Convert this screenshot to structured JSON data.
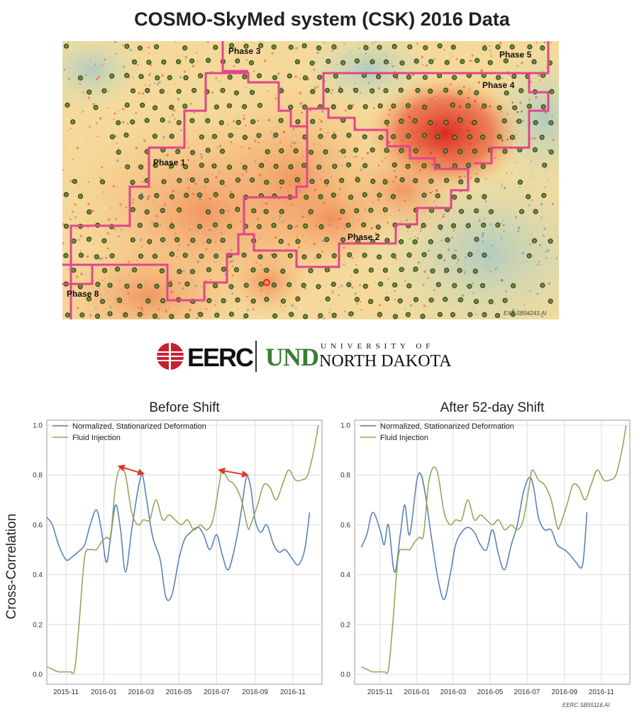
{
  "title": "COSMO-SkyMed system (CSK) 2016 Data",
  "map": {
    "phases": [
      "Phase 1",
      "Phase 2",
      "Phase 3",
      "Phase 4",
      "Phase 5",
      "Phase 8"
    ],
    "credit": "EXT SB54243.AI",
    "colors": {
      "boundary": "#e0468c",
      "well_fill": "#6f8a3a"
    }
  },
  "logos": {
    "eerc": "EERC",
    "und_mark": "UND",
    "university_of": "UNIVERSITY OF",
    "north_dakota": "NORTH DAKOTA"
  },
  "figure_credit": "EERC SB55116.AI",
  "chart_data": [
    {
      "type": "line",
      "title": "Before Shift",
      "ylabel": "Cross-Correlation",
      "xlabel": "",
      "ylim": [
        -0.04,
        1.02
      ],
      "xlim": [
        "2015-10-01",
        "2016-12-18"
      ],
      "yticks": [
        "0.0",
        "0.2",
        "0.4",
        "0.6",
        "0.8",
        "1.0"
      ],
      "xticks": [
        "2015-11",
        "2016-01",
        "2016-03",
        "2016-05",
        "2016-07",
        "2016-09",
        "2016-11"
      ],
      "grid": true,
      "legend": "top-left",
      "annotations": [
        "double arrow between peaks near 2016-02",
        "double arrow between peaks near 2016-08"
      ],
      "series": [
        {
          "name": "Normalized, Stationarized Deformation",
          "color": "#5b83b5",
          "x": [
            "2015-10-01",
            "2015-10-10",
            "2015-10-20",
            "2015-11-01",
            "2015-11-10",
            "2015-11-20",
            "2015-12-01",
            "2015-12-10",
            "2015-12-20",
            "2015-12-28",
            "2016-01-05",
            "2016-01-12",
            "2016-01-20",
            "2016-01-28",
            "2016-02-05",
            "2016-02-15",
            "2016-02-25",
            "2016-03-03",
            "2016-03-10",
            "2016-03-20",
            "2016-04-01",
            "2016-04-10",
            "2016-04-20",
            "2016-05-01",
            "2016-05-10",
            "2016-05-20",
            "2016-06-01",
            "2016-06-10",
            "2016-06-20",
            "2016-07-01",
            "2016-07-10",
            "2016-07-20",
            "2016-08-01",
            "2016-08-10",
            "2016-08-18",
            "2016-08-25",
            "2016-09-01",
            "2016-09-10",
            "2016-09-20",
            "2016-10-01",
            "2016-10-10",
            "2016-10-20",
            "2016-11-01",
            "2016-11-10",
            "2016-11-20",
            "2016-11-28"
          ],
          "values": [
            0.63,
            0.6,
            0.52,
            0.46,
            0.47,
            0.49,
            0.52,
            0.6,
            0.66,
            0.58,
            0.45,
            0.55,
            0.68,
            0.58,
            0.41,
            0.58,
            0.74,
            0.8,
            0.7,
            0.55,
            0.46,
            0.31,
            0.32,
            0.46,
            0.54,
            0.57,
            0.59,
            0.56,
            0.5,
            0.56,
            0.48,
            0.42,
            0.53,
            0.66,
            0.79,
            0.75,
            0.62,
            0.57,
            0.6,
            0.52,
            0.49,
            0.5,
            0.46,
            0.44,
            0.5,
            0.65
          ]
        },
        {
          "name": "Fluid Injection",
          "color": "#9aa55a",
          "x": [
            "2015-10-01",
            "2015-10-10",
            "2015-10-20",
            "2015-11-01",
            "2015-11-08",
            "2015-11-15",
            "2015-11-22",
            "2015-12-01",
            "2015-12-10",
            "2015-12-20",
            "2015-12-28",
            "2016-01-05",
            "2016-01-12",
            "2016-01-20",
            "2016-01-28",
            "2016-02-05",
            "2016-02-15",
            "2016-02-25",
            "2016-03-05",
            "2016-03-15",
            "2016-03-25",
            "2016-04-05",
            "2016-04-15",
            "2016-04-25",
            "2016-05-05",
            "2016-05-15",
            "2016-05-25",
            "2016-06-05",
            "2016-06-15",
            "2016-06-25",
            "2016-07-05",
            "2016-07-10",
            "2016-07-20",
            "2016-07-30",
            "2016-08-10",
            "2016-08-20",
            "2016-08-25",
            "2016-09-05",
            "2016-09-15",
            "2016-09-25",
            "2016-10-05",
            "2016-10-15",
            "2016-10-25",
            "2016-11-05",
            "2016-11-15",
            "2016-11-25",
            "2016-12-05",
            "2016-12-12"
          ],
          "values": [
            0.03,
            0.02,
            0.01,
            0.01,
            0.01,
            0.02,
            0.2,
            0.47,
            0.5,
            0.5,
            0.53,
            0.55,
            0.56,
            0.76,
            0.83,
            0.8,
            0.65,
            0.6,
            0.62,
            0.62,
            0.7,
            0.62,
            0.64,
            0.62,
            0.6,
            0.62,
            0.58,
            0.6,
            0.58,
            0.62,
            0.76,
            0.82,
            0.78,
            0.76,
            0.7,
            0.59,
            0.6,
            0.68,
            0.76,
            0.75,
            0.7,
            0.76,
            0.82,
            0.78,
            0.78,
            0.8,
            0.9,
            1.0
          ]
        }
      ]
    },
    {
      "type": "line",
      "title": "After 52-day Shift",
      "xlabel": "",
      "ylim": [
        -0.04,
        1.02
      ],
      "xlim": [
        "2015-09-20",
        "2016-12-18"
      ],
      "yticks": [
        "0.0",
        "0.2",
        "0.4",
        "0.6",
        "0.8",
        "1.0"
      ],
      "xticks": [
        "2015-11",
        "2016-01",
        "2016-03",
        "2016-05",
        "2016-07",
        "2016-09",
        "2016-11"
      ],
      "grid": true,
      "legend": "top-left",
      "series": [
        {
          "name": "Normalized, Stationarized Deformation",
          "color": "#5b83b5",
          "x": [
            "2015-10-01",
            "2015-10-10",
            "2015-10-20",
            "2015-11-01",
            "2015-11-08",
            "2015-11-15",
            "2015-11-25",
            "2015-12-05",
            "2015-12-12",
            "2015-12-20",
            "2016-01-01",
            "2016-01-08",
            "2016-01-15",
            "2016-01-25",
            "2016-02-05",
            "2016-02-15",
            "2016-02-25",
            "2016-03-05",
            "2016-03-15",
            "2016-03-25",
            "2016-04-05",
            "2016-04-15",
            "2016-04-25",
            "2016-05-05",
            "2016-05-15",
            "2016-05-25",
            "2016-06-05",
            "2016-06-15",
            "2016-06-25",
            "2016-07-05",
            "2016-07-12",
            "2016-07-20",
            "2016-07-30",
            "2016-08-10",
            "2016-08-20",
            "2016-09-01",
            "2016-09-10",
            "2016-09-20",
            "2016-10-01",
            "2016-10-08"
          ],
          "values": [
            0.51,
            0.56,
            0.65,
            0.58,
            0.52,
            0.6,
            0.41,
            0.57,
            0.68,
            0.56,
            0.78,
            0.8,
            0.72,
            0.55,
            0.38,
            0.3,
            0.4,
            0.52,
            0.57,
            0.59,
            0.57,
            0.52,
            0.5,
            0.58,
            0.48,
            0.42,
            0.52,
            0.6,
            0.73,
            0.79,
            0.75,
            0.63,
            0.58,
            0.58,
            0.52,
            0.5,
            0.48,
            0.45,
            0.44,
            0.65
          ]
        },
        {
          "name": "Fluid Injection",
          "color": "#9aa55a",
          "x": [
            "2015-10-01",
            "2015-10-10",
            "2015-10-20",
            "2015-11-01",
            "2015-11-08",
            "2015-11-15",
            "2015-11-22",
            "2015-12-01",
            "2015-12-10",
            "2015-12-20",
            "2015-12-28",
            "2016-01-05",
            "2016-01-12",
            "2016-01-20",
            "2016-01-28",
            "2016-02-05",
            "2016-02-15",
            "2016-02-25",
            "2016-03-05",
            "2016-03-15",
            "2016-03-25",
            "2016-04-05",
            "2016-04-15",
            "2016-04-25",
            "2016-05-05",
            "2016-05-15",
            "2016-05-25",
            "2016-06-05",
            "2016-06-15",
            "2016-06-25",
            "2016-07-05",
            "2016-07-10",
            "2016-07-20",
            "2016-07-30",
            "2016-08-10",
            "2016-08-20",
            "2016-08-25",
            "2016-09-05",
            "2016-09-15",
            "2016-09-25",
            "2016-10-05",
            "2016-10-15",
            "2016-10-25",
            "2016-11-05",
            "2016-11-15",
            "2016-11-25",
            "2016-12-05",
            "2016-12-12"
          ],
          "values": [
            0.03,
            0.02,
            0.01,
            0.01,
            0.01,
            0.02,
            0.2,
            0.47,
            0.5,
            0.5,
            0.53,
            0.55,
            0.56,
            0.76,
            0.83,
            0.8,
            0.65,
            0.6,
            0.62,
            0.62,
            0.7,
            0.62,
            0.64,
            0.62,
            0.6,
            0.62,
            0.58,
            0.6,
            0.58,
            0.62,
            0.76,
            0.82,
            0.78,
            0.76,
            0.7,
            0.59,
            0.6,
            0.68,
            0.76,
            0.75,
            0.7,
            0.76,
            0.82,
            0.78,
            0.78,
            0.8,
            0.9,
            1.0
          ]
        }
      ]
    }
  ]
}
